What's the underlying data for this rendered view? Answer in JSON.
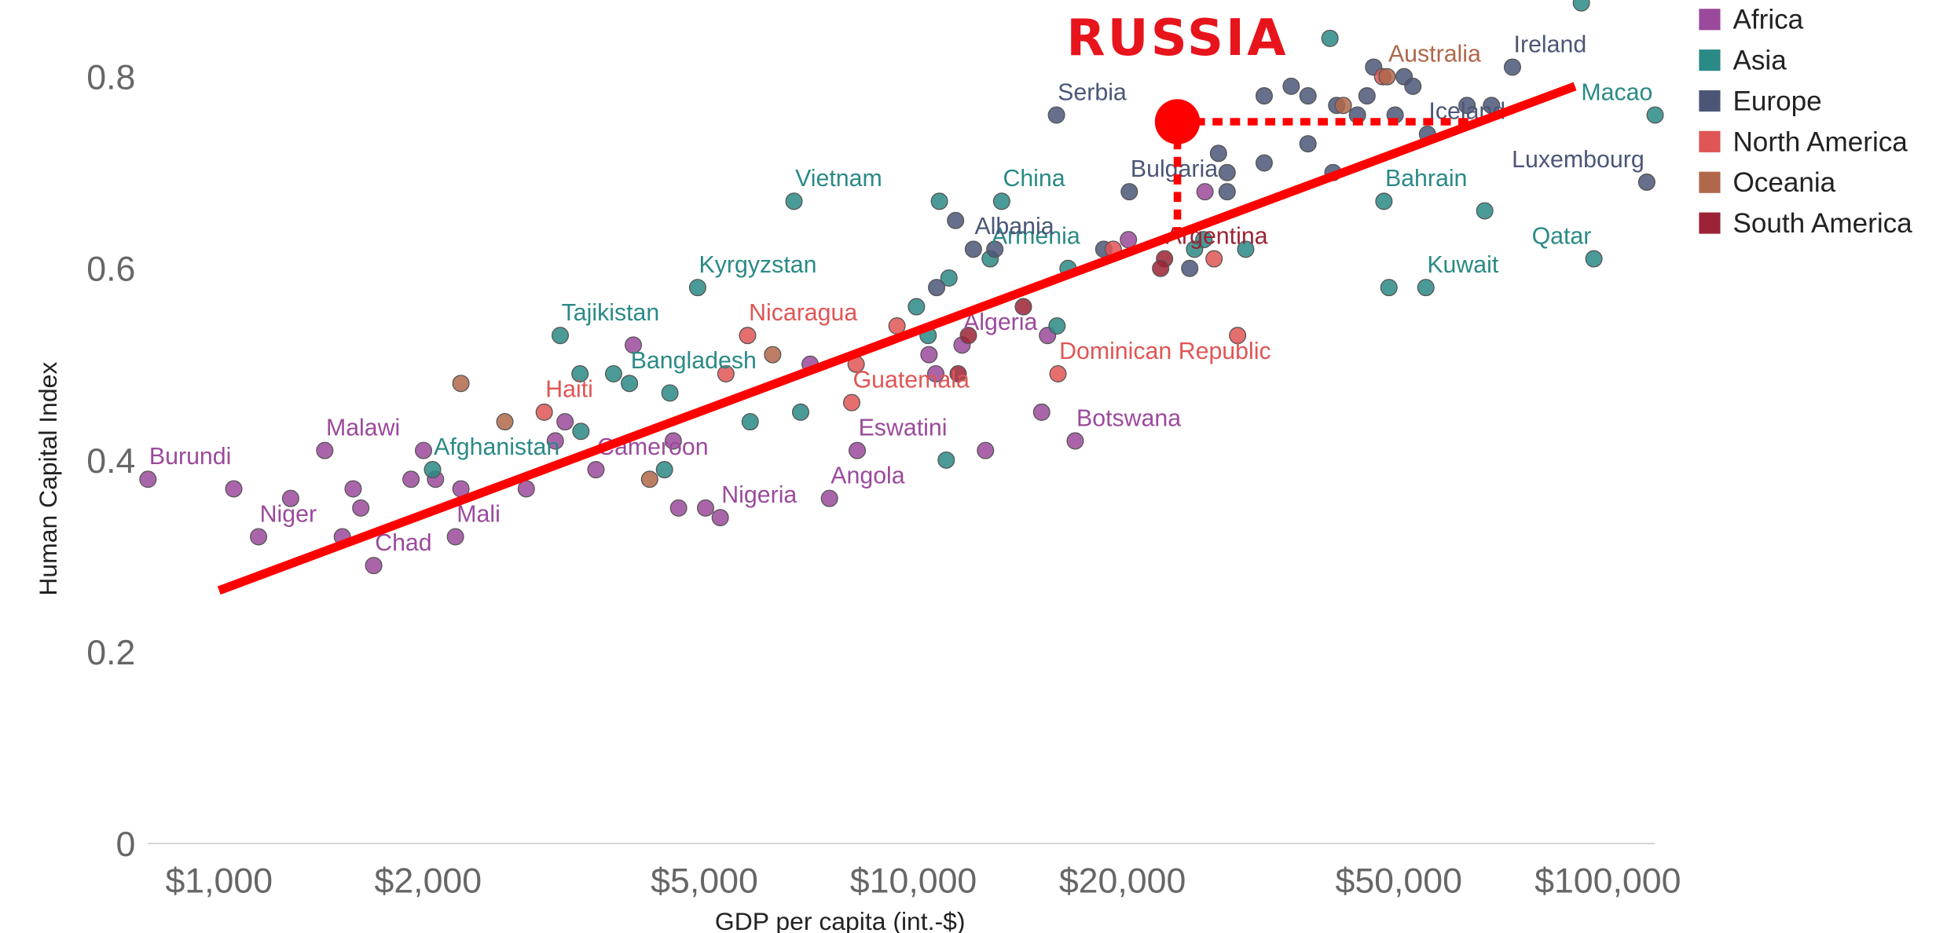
{
  "chart_data": {
    "type": "scatter",
    "x_label": "GDP per capita (int.-$)",
    "y_label": "Human Capital Index",
    "xlog": true,
    "xlim": [
      790,
      117000
    ],
    "ylim": [
      0,
      0.88
    ],
    "xticks": [
      {
        "value": 1000,
        "label": "$1,000"
      },
      {
        "value": 2000,
        "label": "$2,000"
      },
      {
        "value": 5000,
        "label": "$5,000"
      },
      {
        "value": 10000,
        "label": "$10,000"
      },
      {
        "value": 20000,
        "label": "$20,000"
      },
      {
        "value": 50000,
        "label": "$50,000"
      },
      {
        "value": 100000,
        "label": "$100,000"
      }
    ],
    "yticks": [
      0,
      0.2,
      0.4,
      0.6,
      0.8
    ],
    "legend": "top-right",
    "series": [
      {
        "name": "Africa",
        "color": "#9b4a9b",
        "x": [
          790,
          1140,
          1420,
          1670,
          2190,
          5270,
          7570,
          8300,
          17100,
          3490,
          11750,
          1050,
          1268,
          1505,
          1560,
          1600,
          1890,
          1970,
          2050,
          2230,
          2770,
          3150,
          3050,
          3950,
          4510,
          4590,
          5020,
          7100,
          10530,
          10770,
          12700,
          15300,
          15600,
          20400,
          26300
        ],
        "values": [
          0.38,
          0.32,
          0.41,
          0.29,
          0.32,
          0.34,
          0.36,
          0.41,
          0.42,
          0.39,
          0.52,
          0.37,
          0.36,
          0.32,
          0.37,
          0.35,
          0.38,
          0.41,
          0.38,
          0.37,
          0.37,
          0.44,
          0.42,
          0.52,
          0.42,
          0.35,
          0.35,
          0.5,
          0.51,
          0.49,
          0.41,
          0.45,
          0.53,
          0.63,
          0.68
        ],
        "labels": [
          "Burundi",
          "Niger",
          "Malawi",
          "Chad",
          "Mali",
          "Nigeria",
          "Angola",
          "Eswatini",
          "Botswana",
          "Cameroon",
          "Algeria",
          null,
          null,
          null,
          null,
          null,
          null,
          null,
          null,
          null,
          null,
          null,
          null,
          null,
          null,
          null,
          null,
          null,
          null,
          null,
          null,
          null,
          null,
          null,
          null
        ]
      },
      {
        "name": "Asia",
        "color": "#2a8a86",
        "x": [
          6730,
          4890,
          3100,
          3900,
          2030,
          13400,
          12900,
          47600,
          54700,
          95500,
          117000,
          39800,
          91600,
          66500,
          48400,
          30100,
          26200,
          25400,
          16700,
          16100,
          11250,
          10900,
          10500,
          11150,
          6880,
          5820,
          4460,
          4380,
          3700,
          3310,
          3320,
          10100
        ],
        "values": [
          0.67,
          0.58,
          0.53,
          0.48,
          0.39,
          0.67,
          0.61,
          0.67,
          0.58,
          0.61,
          0.76,
          0.84,
          0.877,
          0.66,
          0.58,
          0.62,
          0.63,
          0.62,
          0.6,
          0.54,
          0.59,
          0.67,
          0.53,
          0.4,
          0.45,
          0.44,
          0.47,
          0.39,
          0.49,
          0.49,
          0.43,
          0.56
        ],
        "labels": [
          "Vietnam",
          "Kyrgyzstan",
          "Tajikistan",
          "Bangladesh",
          "Afghanistan",
          "China",
          "Armenia",
          "Bahrain",
          "Kuwait",
          "Qatar",
          "Macao",
          null,
          null,
          null,
          null,
          null,
          null,
          null,
          null,
          null,
          null,
          null,
          null,
          null,
          null,
          null,
          null,
          null,
          null,
          null,
          null,
          null
        ]
      },
      {
        "name": "Europe",
        "color": "#4b5677",
        "x": [
          16070,
          20460,
          12200,
          72900,
          113800,
          55000,
          32000,
          35000,
          37000,
          40700,
          43600,
          45000,
          46000,
          49400,
          50900,
          52400,
          62700,
          68000,
          37000,
          32000,
          28300,
          27500,
          28300,
          25000,
          18800,
          11500,
          13100,
          10800,
          40200
        ],
        "values": [
          0.76,
          0.68,
          0.62,
          0.81,
          0.69,
          0.74,
          0.78,
          0.79,
          0.78,
          0.77,
          0.76,
          0.78,
          0.81,
          0.76,
          0.8,
          0.79,
          0.77,
          0.77,
          0.73,
          0.71,
          0.7,
          0.72,
          0.68,
          0.6,
          0.62,
          0.65,
          0.62,
          0.58,
          0.7
        ],
        "labels": [
          "Serbia",
          "Bulgaria",
          "Albania",
          "Ireland",
          "Luxembourg",
          "Iceland",
          null,
          null,
          null,
          null,
          null,
          null,
          null,
          null,
          null,
          null,
          null,
          null,
          null,
          null,
          null,
          null,
          null,
          null,
          null,
          null,
          null,
          null,
          null
        ]
      },
      {
        "name": "North America",
        "color": "#e05555",
        "x": [
          5770,
          2940,
          8150,
          16150,
          9470,
          8270,
          27100,
          29300,
          19400,
          47400,
          5370
        ],
        "values": [
          0.53,
          0.45,
          0.46,
          0.49,
          0.54,
          0.5,
          0.61,
          0.53,
          0.62,
          0.8,
          0.49
        ],
        "labels": [
          "Nicaragua",
          "Haiti",
          "Guatemala",
          "Dominican Republic",
          null,
          null,
          null,
          null,
          null,
          null,
          null
        ]
      },
      {
        "name": "Oceania",
        "color": "#b0674a",
        "x": [
          48100,
          2230,
          2580,
          6270,
          41600,
          4170
        ],
        "values": [
          0.8,
          0.48,
          0.44,
          0.51,
          0.77,
          0.38
        ],
        "labels": [
          "Australia",
          null,
          null,
          null,
          null,
          null
        ]
      },
      {
        "name": "South America",
        "color": "#9b2335",
        "x": [
          23000,
          22700,
          14400,
          11600,
          12000
        ],
        "values": [
          0.61,
          0.6,
          0.56,
          0.49,
          0.53
        ],
        "labels": [
          "Argentina",
          null,
          null,
          null,
          null
        ]
      }
    ],
    "trendline": {
      "color": "#ff0000",
      "x": [
        1000,
        89700
      ],
      "values": [
        0.264,
        0.79
      ]
    },
    "highlight": {
      "label": "RUSSIA",
      "color": "#ff0000",
      "x": 24000,
      "y": 0.753
    }
  }
}
